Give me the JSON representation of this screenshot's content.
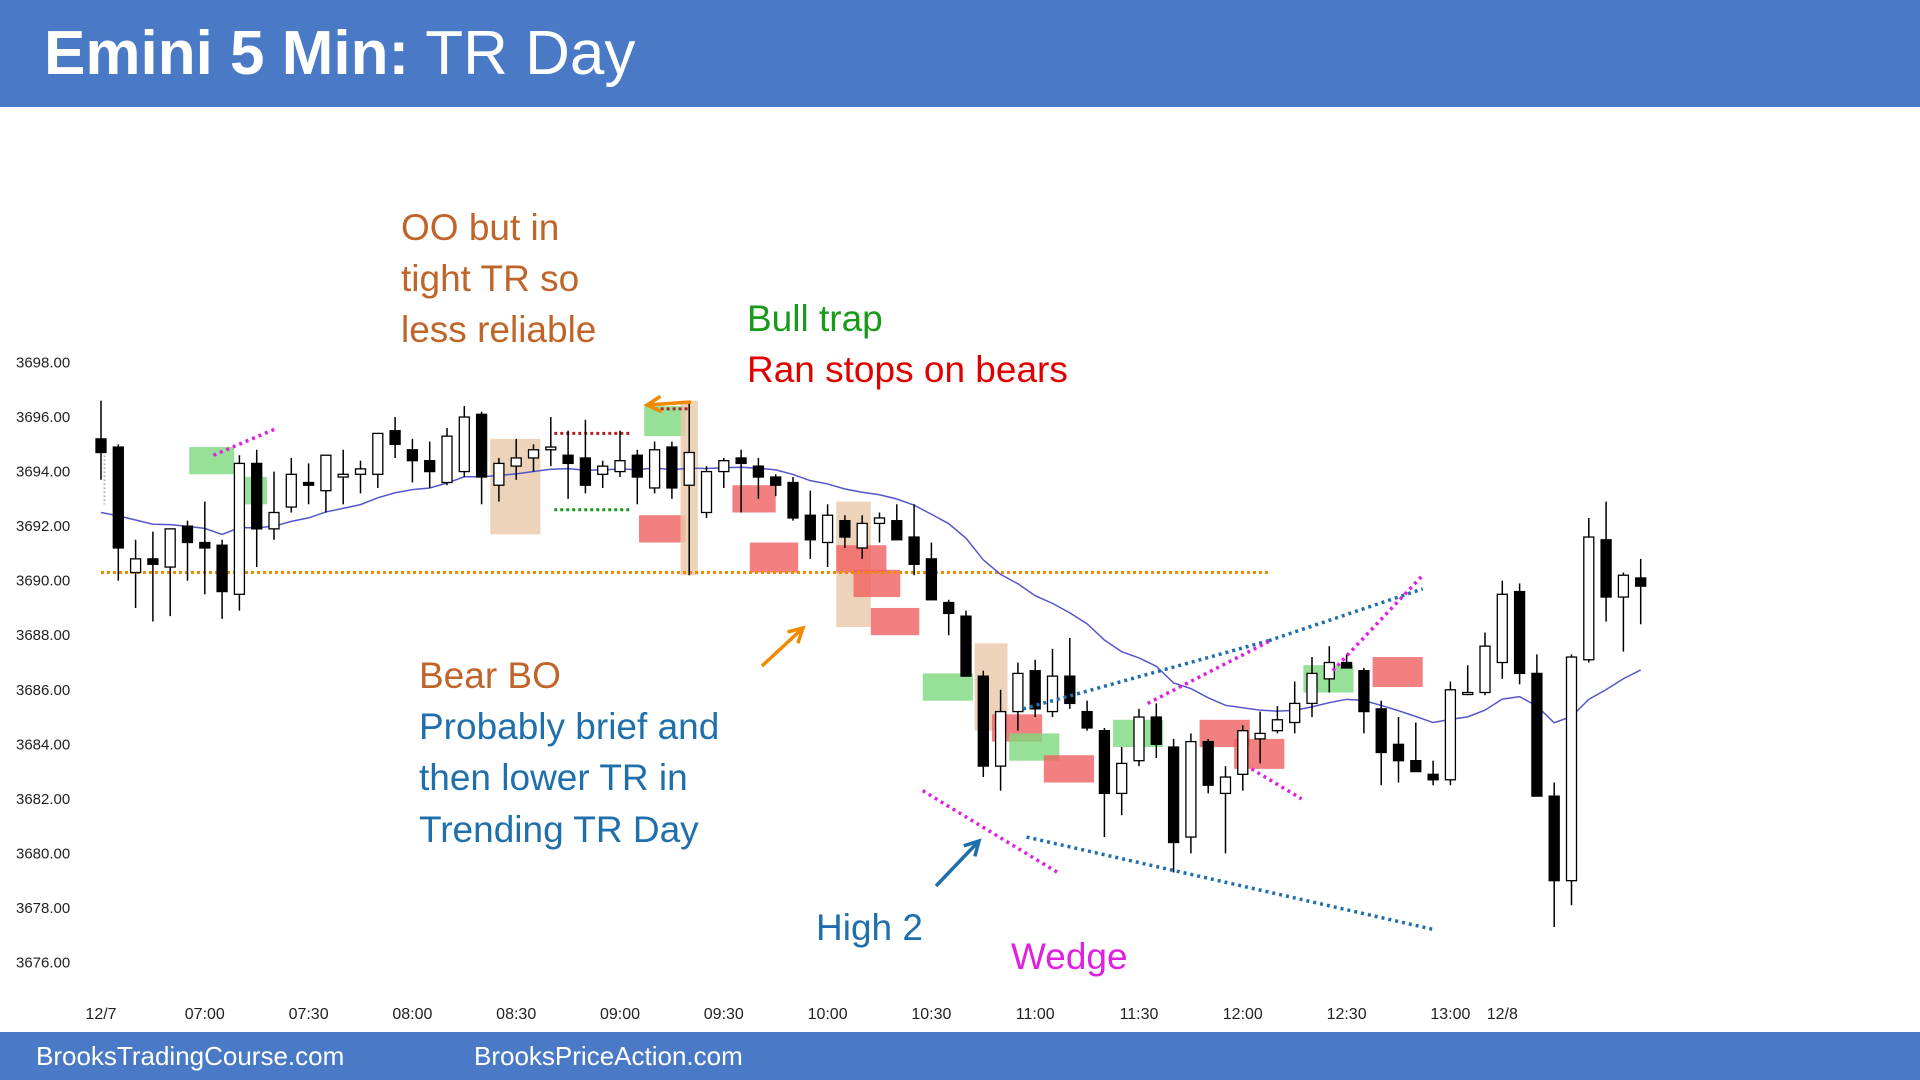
{
  "header": {
    "title_bold": "Emini 5 Min:",
    "title_rest": " TR Day"
  },
  "footer": {
    "left": "BrooksTradingCourse.com",
    "right": "BrooksPriceAction.com"
  },
  "colors": {
    "bull_bar": "#ffffff",
    "bear_bar": "#000000",
    "ema": "#5555cc",
    "dotted_level": "#f08a00",
    "green_box": "#7dd87d",
    "red_box": "#f06060",
    "tan_box": "#e8c8a8",
    "brown": "#c0652a",
    "blue": "#1f6fad",
    "green": "#1a9a1a",
    "red": "#e00000",
    "magenta": "#e020e0",
    "arrow_blue": "#1f6fad"
  },
  "chart_data": {
    "type": "candlestick",
    "title": "Emini 5 Min: TR Day",
    "ylim": [
      3676,
      3698
    ],
    "y_ticks": [
      "3676.00",
      "3678.00",
      "3680.00",
      "3682.00",
      "3684.00",
      "3686.00",
      "3688.00",
      "3690.00",
      "3692.00",
      "3694.00",
      "3696.00",
      "3698.00"
    ],
    "x_ticks": [
      {
        "label": "12/7",
        "bar": 0
      },
      {
        "label": "07:00",
        "bar": 6
      },
      {
        "label": "07:30",
        "bar": 12
      },
      {
        "label": "08:00",
        "bar": 18
      },
      {
        "label": "08:30",
        "bar": 24
      },
      {
        "label": "09:00",
        "bar": 30
      },
      {
        "label": "09:30",
        "bar": 36
      },
      {
        "label": "10:00",
        "bar": 42
      },
      {
        "label": "10:30",
        "bar": 48
      },
      {
        "label": "11:00",
        "bar": 54
      },
      {
        "label": "11:30",
        "bar": 60
      },
      {
        "label": "12:00",
        "bar": 66
      },
      {
        "label": "12:30",
        "bar": 72
      },
      {
        "label": "13:00",
        "bar": 78
      },
      {
        "label": "12/8",
        "bar": 81
      }
    ],
    "bars": [
      {
        "o": 3695.2,
        "h": 3696.6,
        "l": 3693.7,
        "c": 3694.7
      },
      {
        "o": 3694.9,
        "h": 3695.0,
        "l": 3690.0,
        "c": 3691.2
      },
      {
        "o": 3690.3,
        "h": 3691.5,
        "l": 3689.0,
        "c": 3690.8
      },
      {
        "o": 3690.8,
        "h": 3691.8,
        "l": 3688.5,
        "c": 3690.6
      },
      {
        "o": 3690.5,
        "h": 3691.7,
        "l": 3688.7,
        "c": 3691.9
      },
      {
        "o": 3692.0,
        "h": 3692.2,
        "l": 3690.0,
        "c": 3691.4
      },
      {
        "o": 3691.4,
        "h": 3692.9,
        "l": 3689.5,
        "c": 3691.2
      },
      {
        "o": 3691.3,
        "h": 3691.5,
        "l": 3688.6,
        "c": 3689.6
      },
      {
        "o": 3689.5,
        "h": 3694.6,
        "l": 3688.9,
        "c": 3694.3
      },
      {
        "o": 3694.3,
        "h": 3694.8,
        "l": 3690.5,
        "c": 3691.9
      },
      {
        "o": 3691.9,
        "h": 3694.0,
        "l": 3691.5,
        "c": 3692.5
      },
      {
        "o": 3692.7,
        "h": 3694.5,
        "l": 3692.5,
        "c": 3693.9
      },
      {
        "o": 3693.6,
        "h": 3694.3,
        "l": 3692.8,
        "c": 3693.5
      },
      {
        "o": 3693.3,
        "h": 3694.5,
        "l": 3692.5,
        "c": 3694.6
      },
      {
        "o": 3693.8,
        "h": 3694.8,
        "l": 3692.8,
        "c": 3693.9
      },
      {
        "o": 3693.9,
        "h": 3694.4,
        "l": 3693.2,
        "c": 3694.1
      },
      {
        "o": 3693.9,
        "h": 3695.3,
        "l": 3693.4,
        "c": 3695.4
      },
      {
        "o": 3695.5,
        "h": 3696.0,
        "l": 3694.5,
        "c": 3695.0
      },
      {
        "o": 3694.8,
        "h": 3695.2,
        "l": 3693.6,
        "c": 3694.4
      },
      {
        "o": 3694.4,
        "h": 3695.1,
        "l": 3693.4,
        "c": 3694.0
      },
      {
        "o": 3693.6,
        "h": 3695.6,
        "l": 3693.5,
        "c": 3695.3
      },
      {
        "o": 3694.0,
        "h": 3696.4,
        "l": 3693.8,
        "c": 3696.0
      },
      {
        "o": 3696.1,
        "h": 3696.2,
        "l": 3692.8,
        "c": 3693.8
      },
      {
        "o": 3693.5,
        "h": 3694.5,
        "l": 3692.9,
        "c": 3694.3
      },
      {
        "o": 3694.2,
        "h": 3695.2,
        "l": 3693.7,
        "c": 3694.5
      },
      {
        "o": 3694.5,
        "h": 3695.0,
        "l": 3694.0,
        "c": 3694.8
      },
      {
        "o": 3694.8,
        "h": 3696.0,
        "l": 3694.2,
        "c": 3694.9
      },
      {
        "o": 3694.6,
        "h": 3695.5,
        "l": 3693.0,
        "c": 3694.3
      },
      {
        "o": 3694.5,
        "h": 3695.9,
        "l": 3693.2,
        "c": 3693.5
      },
      {
        "o": 3693.9,
        "h": 3694.4,
        "l": 3693.4,
        "c": 3694.2
      },
      {
        "o": 3694.0,
        "h": 3695.5,
        "l": 3693.8,
        "c": 3694.4
      },
      {
        "o": 3694.6,
        "h": 3694.8,
        "l": 3692.8,
        "c": 3693.8
      },
      {
        "o": 3693.4,
        "h": 3695.1,
        "l": 3693.2,
        "c": 3694.8
      },
      {
        "o": 3694.9,
        "h": 3695.1,
        "l": 3693.0,
        "c": 3693.4
      },
      {
        "o": 3693.5,
        "h": 3696.5,
        "l": 3690.2,
        "c": 3694.7
      },
      {
        "o": 3692.5,
        "h": 3694.2,
        "l": 3692.3,
        "c": 3694.0
      },
      {
        "o": 3694.0,
        "h": 3694.5,
        "l": 3693.4,
        "c": 3694.4
      },
      {
        "o": 3694.5,
        "h": 3694.8,
        "l": 3692.5,
        "c": 3694.3
      },
      {
        "o": 3694.2,
        "h": 3694.5,
        "l": 3693.0,
        "c": 3693.8
      },
      {
        "o": 3693.8,
        "h": 3693.9,
        "l": 3693.1,
        "c": 3693.5
      }
    ],
    "annotations": [
      "OO but in",
      "tight TR so",
      "less reliable",
      "Bull trap",
      "Ran stops on bears",
      "Bear BO",
      "Probably brief and",
      "then lower TR in",
      "Trending TR Day",
      "High 2",
      "Wedge"
    ],
    "level_line": 3690.3
  },
  "chart_bars_2": [
    {
      "o": 3693.6,
      "h": 3693.8,
      "l": 3692.2,
      "c": 3692.3
    },
    {
      "o": 3692.4,
      "h": 3693.3,
      "l": 3690.8,
      "c": 3691.5
    },
    {
      "o": 3691.4,
      "h": 3692.8,
      "l": 3690.5,
      "c": 3692.4
    },
    {
      "o": 3692.2,
      "h": 3692.4,
      "l": 3691.2,
      "c": 3691.6
    },
    {
      "o": 3691.2,
      "h": 3692.4,
      "l": 3690.8,
      "c": 3692.1
    },
    {
      "o": 3692.1,
      "h": 3692.5,
      "l": 3691.4,
      "c": 3692.3
    },
    {
      "o": 3692.2,
      "h": 3692.8,
      "l": 3691.5,
      "c": 3691.5
    },
    {
      "o": 3691.6,
      "h": 3692.8,
      "l": 3690.2,
      "c": 3690.6
    },
    {
      "o": 3690.8,
      "h": 3691.4,
      "l": 3689.3,
      "c": 3689.3
    },
    {
      "o": 3689.2,
      "h": 3689.3,
      "l": 3688.0,
      "c": 3688.8
    },
    {
      "o": 3688.7,
      "h": 3688.9,
      "l": 3686.5,
      "c": 3686.5
    },
    {
      "o": 3686.5,
      "h": 3686.7,
      "l": 3682.8,
      "c": 3683.2
    },
    {
      "o": 3683.2,
      "h": 3686.0,
      "l": 3682.3,
      "c": 3685.2
    },
    {
      "o": 3685.2,
      "h": 3687.0,
      "l": 3684.5,
      "c": 3686.6
    },
    {
      "o": 3686.7,
      "h": 3687.1,
      "l": 3685.0,
      "c": 3685.3
    },
    {
      "o": 3685.2,
      "h": 3687.5,
      "l": 3685.0,
      "c": 3686.5
    },
    {
      "o": 3686.5,
      "h": 3687.9,
      "l": 3685.3,
      "c": 3685.5
    },
    {
      "o": 3685.2,
      "h": 3685.6,
      "l": 3684.5,
      "c": 3684.6
    },
    {
      "o": 3684.5,
      "h": 3684.6,
      "l": 3680.6,
      "c": 3682.2
    },
    {
      "o": 3682.2,
      "h": 3683.9,
      "l": 3681.4,
      "c": 3683.3
    },
    {
      "o": 3683.4,
      "h": 3685.3,
      "l": 3683.2,
      "c": 3685.0
    },
    {
      "o": 3685.0,
      "h": 3685.5,
      "l": 3683.5,
      "c": 3684.0
    },
    {
      "o": 3683.9,
      "h": 3684.2,
      "l": 3679.3,
      "c": 3680.4
    },
    {
      "o": 3680.6,
      "h": 3684.4,
      "l": 3680.0,
      "c": 3684.1
    },
    {
      "o": 3684.1,
      "h": 3684.2,
      "l": 3682.2,
      "c": 3682.5
    },
    {
      "o": 3682.2,
      "h": 3683.2,
      "l": 3680.0,
      "c": 3682.8
    },
    {
      "o": 3682.9,
      "h": 3684.7,
      "l": 3682.3,
      "c": 3684.5
    },
    {
      "o": 3684.2,
      "h": 3685.2,
      "l": 3683.3,
      "c": 3684.4
    },
    {
      "o": 3684.5,
      "h": 3685.4,
      "l": 3684.4,
      "c": 3684.9
    },
    {
      "o": 3684.8,
      "h": 3686.3,
      "l": 3684.4,
      "c": 3685.5
    },
    {
      "o": 3685.5,
      "h": 3687.2,
      "l": 3685.0,
      "c": 3686.6
    },
    {
      "o": 3686.4,
      "h": 3687.6,
      "l": 3685.9,
      "c": 3687.0
    },
    {
      "o": 3687.0,
      "h": 3687.3,
      "l": 3686.8,
      "c": 3686.8
    },
    {
      "o": 3686.7,
      "h": 3686.8,
      "l": 3684.4,
      "c": 3685.2
    },
    {
      "o": 3685.3,
      "h": 3685.6,
      "l": 3682.5,
      "c": 3683.7
    },
    {
      "o": 3684.0,
      "h": 3685.0,
      "l": 3682.6,
      "c": 3683.4
    },
    {
      "o": 3683.4,
      "h": 3684.8,
      "l": 3683.0,
      "c": 3683.0
    },
    {
      "o": 3682.9,
      "h": 3683.4,
      "l": 3682.5,
      "c": 3682.7
    },
    {
      "o": 3682.7,
      "h": 3686.3,
      "l": 3682.5,
      "c": 3686.0
    },
    {
      "o": 3685.9,
      "h": 3686.9,
      "l": 3685.8,
      "c": 3685.9
    },
    {
      "o": 3685.9,
      "h": 3688.1,
      "l": 3685.8,
      "c": 3687.6
    },
    {
      "o": 3687.0,
      "h": 3690.0,
      "l": 3686.4,
      "c": 3689.5
    },
    {
      "o": 3689.6,
      "h": 3689.9,
      "l": 3686.2,
      "c": 3686.6
    },
    {
      "o": 3686.6,
      "h": 3687.3,
      "l": 3682.1,
      "c": 3682.1
    },
    {
      "o": 3682.1,
      "h": 3682.6,
      "l": 3677.3,
      "c": 3679.0
    },
    {
      "o": 3679.0,
      "h": 3687.3,
      "l": 3678.1,
      "c": 3687.2
    },
    {
      "o": 3687.1,
      "h": 3692.3,
      "l": 3687.0,
      "c": 3691.6
    },
    {
      "o": 3691.5,
      "h": 3692.9,
      "l": 3688.5,
      "c": 3689.4
    },
    {
      "o": 3689.4,
      "h": 3690.3,
      "l": 3687.4,
      "c": 3690.2
    },
    {
      "o": 3690.1,
      "h": 3690.8,
      "l": 3688.4,
      "c": 3689.8
    }
  ]
}
